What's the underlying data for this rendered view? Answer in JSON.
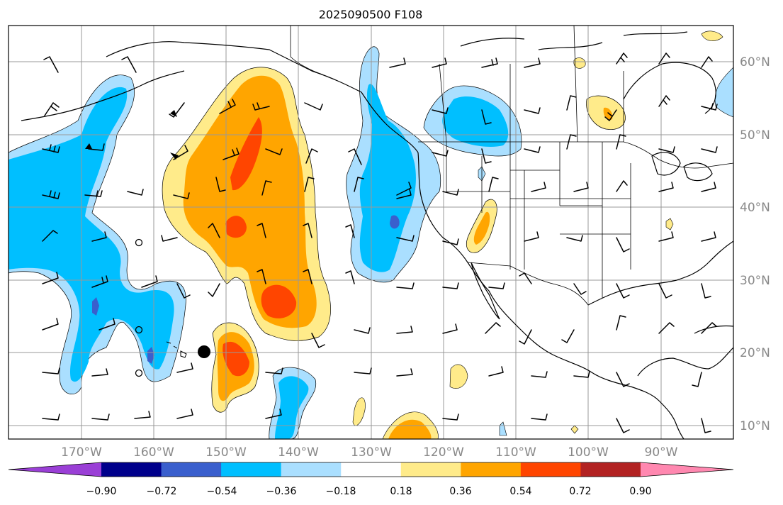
{
  "title": "2025090500 F108",
  "colors": {
    "land_outline": "#000000",
    "grid": "#999999",
    "label": "#888888",
    "bins": [
      "#9a3fd6",
      "#00008b",
      "#3a5fcd",
      "#00bfff",
      "#aadfff",
      "#ffffff",
      "#ffeb8a",
      "#ffa500",
      "#ff4500",
      "#b22222",
      "#ff88b0"
    ]
  },
  "lat_labels": [
    "60°N",
    "50°N",
    "40°N",
    "30°N",
    "20°N",
    "10°N"
  ],
  "lon_labels": [
    "170°W",
    "160°W",
    "150°W",
    "140°W",
    "130°W",
    "120°W",
    "110°W",
    "100°W",
    "90°W"
  ],
  "colorbar": {
    "ticks": [
      "−0.90",
      "−0.72",
      "−0.54",
      "−0.36",
      "−0.18",
      "0.18",
      "0.36",
      "0.54",
      "0.72",
      "0.90"
    ],
    "extend": "both"
  },
  "icons": {
    "tropical_cyclone": "filled-circle-icon",
    "calm_wind": "open-circle-icon",
    "wind": "wind-barb-icon"
  }
}
